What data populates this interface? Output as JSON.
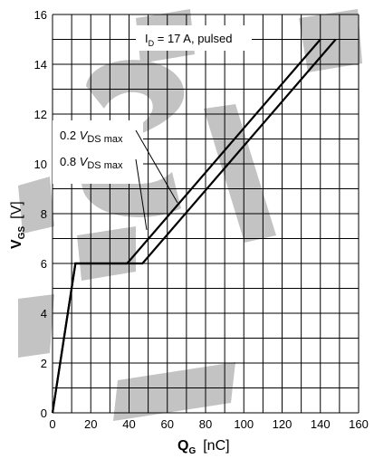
{
  "chart_data": {
    "type": "line",
    "xlabel": {
      "main": "Q",
      "sub": "G",
      "unit": "[nC]"
    },
    "ylabel": {
      "main": "V",
      "sub": "GS",
      "unit": "[V]"
    },
    "xlim": [
      0,
      160
    ],
    "ylim": [
      0,
      16
    ],
    "x_ticks": [
      0,
      20,
      40,
      60,
      80,
      100,
      120,
      140,
      160
    ],
    "y_ticks": [
      0,
      2,
      4,
      6,
      8,
      10,
      12,
      14,
      16
    ],
    "x_grid_step": 10,
    "y_grid_step": 1,
    "grid": true,
    "annotation": {
      "prefix": "I",
      "sub": "D",
      "text": " = 17 A, pulsed"
    },
    "series": [
      {
        "label": {
          "pre": "0.2 ",
          "v": "V",
          "sub": "DS max"
        },
        "points": [
          [
            0,
            0
          ],
          [
            12,
            6
          ],
          [
            39,
            6
          ],
          [
            140,
            15
          ]
        ]
      },
      {
        "label": {
          "pre": "0.8 ",
          "v": "V",
          "sub": "DS max"
        },
        "points": [
          [
            0,
            0
          ],
          [
            12,
            6
          ],
          [
            47,
            6
          ],
          [
            148,
            15
          ]
        ]
      }
    ]
  }
}
